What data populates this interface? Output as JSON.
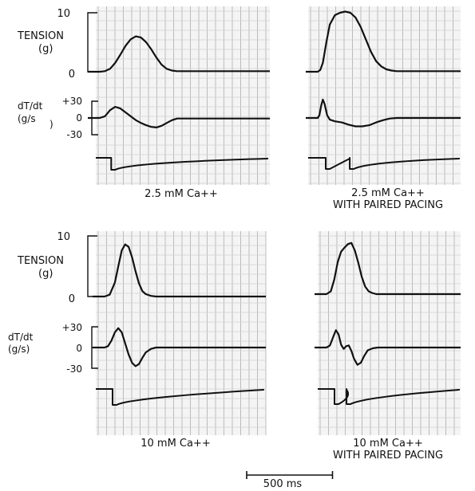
{
  "chart_data": [
    {
      "type": "line",
      "caption": [
        "2.5 mM Ca++"
      ],
      "tension": {
        "label": [
          "TENSION",
          "(g)"
        ],
        "ticks": [
          "10",
          "0"
        ],
        "ylim": [
          0,
          10
        ],
        "x_ms": [
          0,
          30,
          60,
          90,
          120,
          150,
          180,
          210,
          240,
          270,
          300,
          330,
          360,
          390,
          420,
          450
        ],
        "values": [
          0,
          0.1,
          0.5,
          1.5,
          2.9,
          4.4,
          5.5,
          6,
          5.8,
          5,
          3.8,
          2.4,
          1.2,
          0.5,
          0.2,
          0.1
        ]
      },
      "dtdt": {
        "label": [
          "dT/dt",
          "(g/s",
          ")"
        ],
        "ticks": [
          "+30",
          "0",
          "-30"
        ],
        "ylim": [
          -30,
          30
        ],
        "x_ms": [
          0,
          30,
          60,
          90,
          120,
          150,
          180,
          210,
          240,
          270,
          300,
          330,
          360,
          390,
          420,
          450
        ],
        "values": [
          0,
          3,
          14,
          20,
          17,
          10,
          3,
          -4,
          -9,
          -13,
          -16,
          -17,
          -14,
          -9,
          -4,
          -1
        ]
      },
      "stimulus": {
        "x_ms": [
          20
        ]
      }
    },
    {
      "type": "line",
      "caption": [
        "2.5 mM Ca++",
        "WITH PAIRED PACING"
      ],
      "tension": {
        "ylim": [
          0,
          10
        ],
        "x_ms": [
          0,
          15,
          30,
          50,
          70,
          100,
          130,
          160,
          190,
          220,
          250,
          280,
          310,
          340,
          370,
          400,
          430,
          460
        ],
        "values": [
          0,
          0.3,
          1.5,
          5,
          8,
          9.6,
          10,
          10.2,
          10,
          9.2,
          7.6,
          5.5,
          3.4,
          1.8,
          0.9,
          0.4,
          0.2,
          0.1
        ]
      },
      "dtdt": {
        "ylim": [
          -30,
          30
        ],
        "x_ms": [
          0,
          10,
          20,
          30,
          40,
          55,
          70,
          100,
          140,
          180,
          220,
          260,
          300,
          340,
          380,
          420,
          460
        ],
        "values": [
          0,
          5,
          22,
          33,
          25,
          5,
          -3,
          -6,
          -8,
          -12,
          -15,
          -15,
          -13,
          -8,
          -4,
          -1,
          0
        ]
      },
      "stimulus": {
        "x_ms": [
          0,
          140
        ]
      }
    },
    {
      "type": "line",
      "caption": [
        "10 mM Ca++"
      ],
      "tension": {
        "label": [
          "TENSION",
          "(g)"
        ],
        "ticks": [
          "10",
          "0"
        ],
        "ylim": [
          0,
          10
        ],
        "x_ms": [
          0,
          30,
          60,
          80,
          100,
          120,
          140,
          160,
          180,
          200,
          220,
          240,
          270,
          300,
          330,
          360
        ],
        "values": [
          0,
          0.3,
          2.3,
          5,
          7.6,
          8.6,
          8.2,
          6.5,
          4.2,
          2.2,
          0.9,
          0.4,
          0.1,
          0,
          0,
          0
        ]
      },
      "dtdt": {
        "label": [
          "dT/dt",
          "(g/s)"
        ],
        "ticks": [
          "+30",
          "0",
          "-30"
        ],
        "ylim": [
          -30,
          30
        ],
        "x_ms": [
          0,
          20,
          40,
          60,
          80,
          100,
          120,
          140,
          160,
          180,
          200,
          220,
          240,
          270,
          300,
          330,
          360
        ],
        "values": [
          0,
          2,
          10,
          22,
          28,
          22,
          6,
          -10,
          -22,
          -27,
          -24,
          -15,
          -7,
          -2,
          0,
          0,
          0
        ]
      },
      "stimulus": {
        "x_ms": [
          0
        ]
      }
    },
    {
      "type": "line",
      "caption": [
        "10 mM Ca++",
        "WITH PAIRED PACING"
      ],
      "tension": {
        "ylim": [
          0,
          10
        ],
        "x_ms": [
          0,
          25,
          45,
          65,
          85,
          105,
          125,
          145,
          165,
          185,
          205,
          225,
          245,
          265,
          290,
          320,
          360
        ],
        "values": [
          0,
          0.5,
          2.5,
          5.5,
          7.3,
          8,
          8.6,
          8.8,
          7.5,
          5.4,
          3,
          1.3,
          0.5,
          0.2,
          0,
          0,
          0
        ]
      },
      "dtdt": {
        "ylim": [
          -30,
          30
        ],
        "x_ms": [
          0,
          20,
          40,
          55,
          70,
          85,
          100,
          115,
          130,
          145,
          160,
          180,
          200,
          220,
          240,
          270,
          300,
          360
        ],
        "values": [
          0,
          3,
          16,
          25,
          19,
          4,
          -2,
          2,
          3,
          -5,
          -16,
          -25,
          -22,
          -12,
          -4,
          -1,
          0,
          0
        ]
      },
      "stimulus": {
        "x_ms": [
          0,
          70
        ]
      }
    }
  ],
  "scale_bar": {
    "label": "500 ms",
    "duration_ms": 500
  }
}
